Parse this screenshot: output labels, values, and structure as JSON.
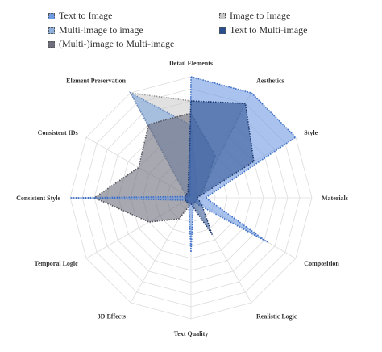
{
  "chart_data": {
    "type": "radar",
    "title": "",
    "axes": [
      "Detail Elements",
      "Aesthetics",
      "Style",
      "Materials",
      "Composition",
      "Realistic Logic",
      "Text Quality",
      "3D Effects",
      "Temporal Logic",
      "Consistent Style",
      "Consistent IDs",
      "Element Preservation"
    ],
    "rmax": 10,
    "rings": 10,
    "grid": true,
    "legend_position": "top",
    "series": [
      {
        "name": "Image to Image",
        "color": "#c8c8c8",
        "line": "#9a9a9a",
        "opacity": 0.55,
        "values": [
          8,
          9,
          1,
          0.5,
          0.5,
          0.5,
          0.5,
          0.5,
          0.5,
          0.5,
          0.5,
          10
        ]
      },
      {
        "name": "Multi-image to image",
        "color": "#8fb0dd",
        "line": "#6d8fc4",
        "opacity": 0.7,
        "values": [
          6,
          1,
          0.5,
          0.5,
          0.5,
          0.5,
          0.5,
          0.5,
          0.5,
          0.5,
          0.5,
          10
        ]
      },
      {
        "name": "(Multi-)image to Multi-image",
        "color": "#6e6e7c",
        "line": "#55555f",
        "opacity": 0.6,
        "values": [
          7,
          4,
          1.2,
          0.5,
          0.5,
          0.5,
          0.5,
          2,
          4,
          8,
          5,
          7
        ]
      },
      {
        "name": "Text to Image",
        "color": "#6f9be3",
        "line": "#3c6fc8",
        "opacity": 0.6,
        "values": [
          10,
          10,
          10,
          1.2,
          7.3,
          0.4,
          4.5,
          0.4,
          0.4,
          10,
          0.2,
          0.2
        ]
      },
      {
        "name": "Text to Multi-image",
        "color": "#2a4f8f",
        "line": "#1f3b70",
        "opacity": 0.55,
        "values": [
          8,
          9,
          6,
          0.5,
          1,
          3.5,
          0.5,
          0.5,
          0.5,
          0.5,
          0.5,
          0.5
        ]
      }
    ]
  },
  "legend": [
    {
      "label": "Text to Image",
      "color": "#6f9be3"
    },
    {
      "label": "Image to Image",
      "color": "#c8c8c8"
    },
    {
      "label": "Multi-image to image",
      "color": "#8fb0dd"
    },
    {
      "label": "Text to Multi-image",
      "color": "#2a4f8f"
    },
    {
      "label": "(Multi-)image to Multi-image",
      "color": "#6e6e7c"
    }
  ]
}
